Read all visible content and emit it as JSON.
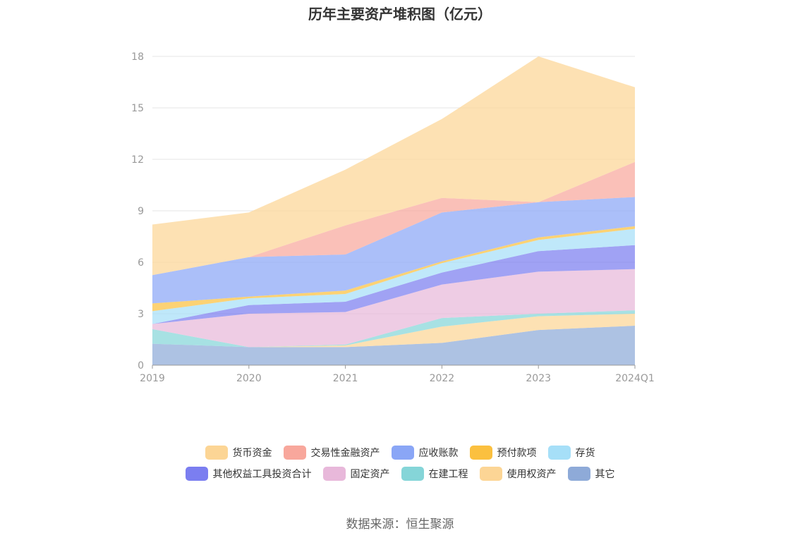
{
  "source_text": "数据来源：恒生聚源",
  "chart_data": {
    "type": "area",
    "stacked": true,
    "title": "历年主要资产堆积图（亿元）",
    "categories": [
      "2019",
      "2020",
      "2021",
      "2022",
      "2023",
      "2024Q1"
    ],
    "ylim": [
      0,
      18
    ],
    "yticks": [
      0,
      3,
      6,
      9,
      12,
      15,
      18
    ],
    "grid": true,
    "legend_position": "bottom",
    "series": [
      {
        "name": "其它",
        "color": "#8eaad8",
        "values": [
          1.25,
          1.05,
          1.05,
          1.3,
          2.05,
          2.3
        ]
      },
      {
        "name": "使用权资产",
        "color": "#fcd595",
        "values": [
          0,
          0,
          0.1,
          0.95,
          0.8,
          0.7
        ]
      },
      {
        "name": "在建工程",
        "color": "#85d5d8",
        "values": [
          0.85,
          0,
          0.05,
          0.5,
          0.15,
          0.2
        ]
      },
      {
        "name": "固定资产",
        "color": "#e8b8da",
        "values": [
          0.3,
          1.95,
          1.9,
          1.95,
          2.45,
          2.4
        ]
      },
      {
        "name": "其他权益工具投资合计",
        "color": "#7b7ef0",
        "values": [
          0,
          0.5,
          0.6,
          0.7,
          1.2,
          1.4
        ]
      },
      {
        "name": "存货",
        "color": "#a6dff8",
        "values": [
          0.75,
          0.4,
          0.45,
          0.55,
          0.65,
          0.95
        ]
      },
      {
        "name": "预付款项",
        "color": "#fbc03f",
        "values": [
          0.45,
          0.1,
          0.2,
          0.1,
          0.15,
          0.15
        ]
      },
      {
        "name": "应收账款",
        "color": "#8aa6f6",
        "values": [
          1.65,
          2.3,
          2.1,
          2.85,
          2.05,
          1.7
        ]
      },
      {
        "name": "交易性金融资产",
        "color": "#f8a79c",
        "values": [
          0,
          0,
          1.7,
          0.85,
          0,
          2.05
        ]
      },
      {
        "name": "货币资金",
        "color": "#fcd595",
        "values": [
          2.95,
          2.6,
          3.25,
          4.6,
          8.5,
          4.35
        ]
      }
    ],
    "legend_order": [
      "货币资金",
      "交易性金融资产",
      "应收账款",
      "预付款项",
      "存货",
      "其他权益工具投资合计",
      "固定资产",
      "在建工程",
      "使用权资产",
      "其它"
    ]
  }
}
